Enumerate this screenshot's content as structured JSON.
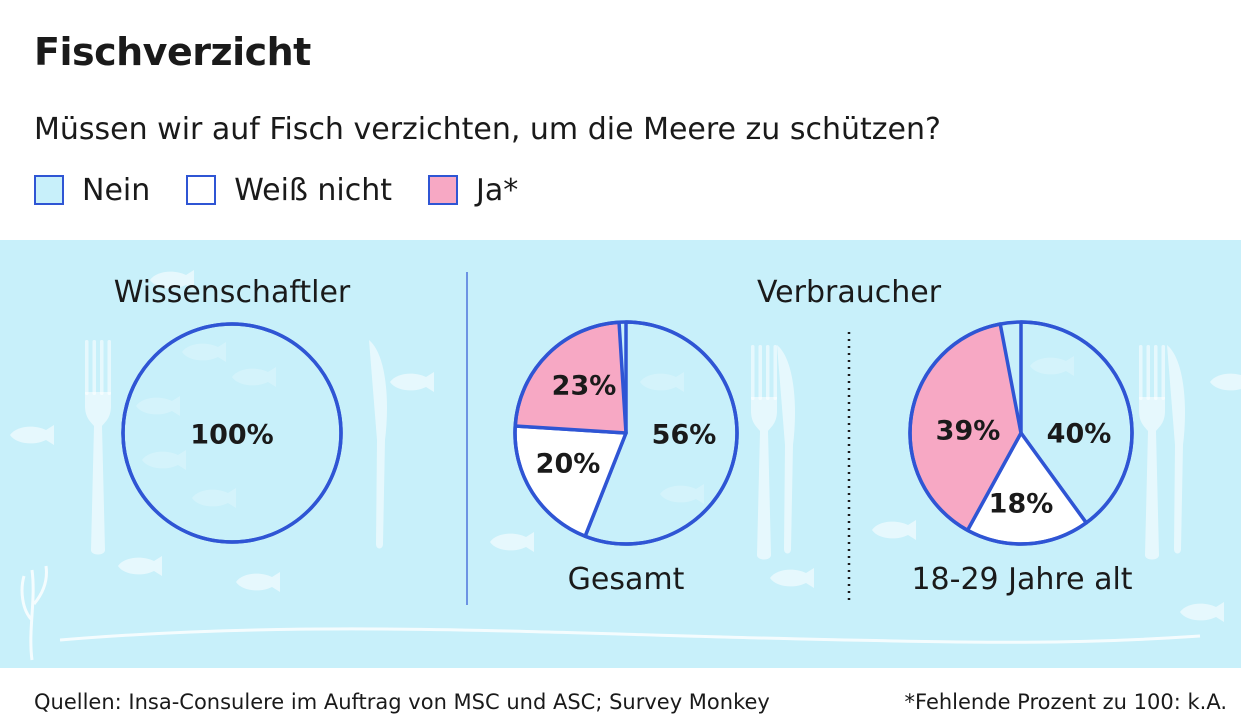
{
  "title": "Fischverzicht",
  "question": "Müssen wir auf Fisch verzichten, um die Meere zu schützen?",
  "legend": [
    {
      "label": "Nein",
      "color": "#c8f0fa"
    },
    {
      "label": "Weiß nicht",
      "color": "#ffffff"
    },
    {
      "label": "Ja*",
      "color": "#f7a8c4"
    }
  ],
  "groups": {
    "scientists": "Wissenschaftler",
    "consumers": "Verbraucher"
  },
  "chart_data": [
    {
      "type": "pie",
      "title": "Wissenschaftler",
      "categories": [
        "Nein",
        "Weiß nicht",
        "Ja*"
      ],
      "values": [
        100,
        0,
        0
      ],
      "labels": [
        "100%"
      ]
    },
    {
      "type": "pie",
      "title": "Gesamt",
      "group": "Verbraucher",
      "categories": [
        "Nein",
        "Weiß nicht",
        "Ja*"
      ],
      "values": [
        56,
        20,
        23
      ],
      "labels": [
        "56%",
        "20%",
        "23%"
      ]
    },
    {
      "type": "pie",
      "title": "18-29 Jahre alt",
      "group": "Verbraucher",
      "categories": [
        "Nein",
        "Weiß nicht",
        "Ja*"
      ],
      "values": [
        40,
        18,
        39
      ],
      "labels": [
        "40%",
        "18%",
        "39%"
      ]
    }
  ],
  "colors": {
    "stroke": "#2f55d4",
    "panel": "#c8f0fa",
    "deco": "#ffffff"
  },
  "footer": {
    "source": "Quellen: Insa-Consulere im Auftrag von MSC und ASC; Survey Monkey",
    "note": "*Fehlende Prozent zu 100: k.A."
  }
}
